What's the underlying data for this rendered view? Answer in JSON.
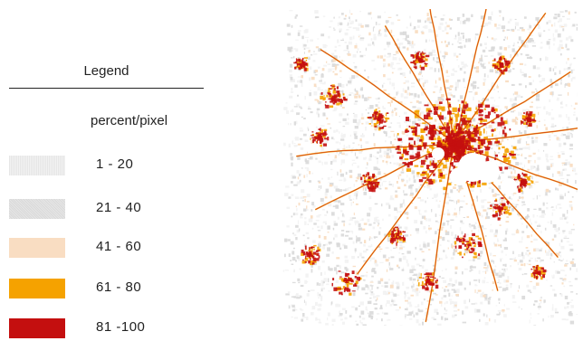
{
  "legend": {
    "title": "Legend",
    "unit": "percent/pixel",
    "classes": [
      {
        "label": "1 - 20",
        "color": "#f2f2f2"
      },
      {
        "label": "21 - 40",
        "color": "#d9d9d9"
      },
      {
        "label": "41 - 60",
        "color": "#f9ddc2"
      },
      {
        "label": "61 - 80",
        "color": "#f5a200"
      },
      {
        "label": "81 -100",
        "color": "#c40f0f"
      }
    ]
  }
}
